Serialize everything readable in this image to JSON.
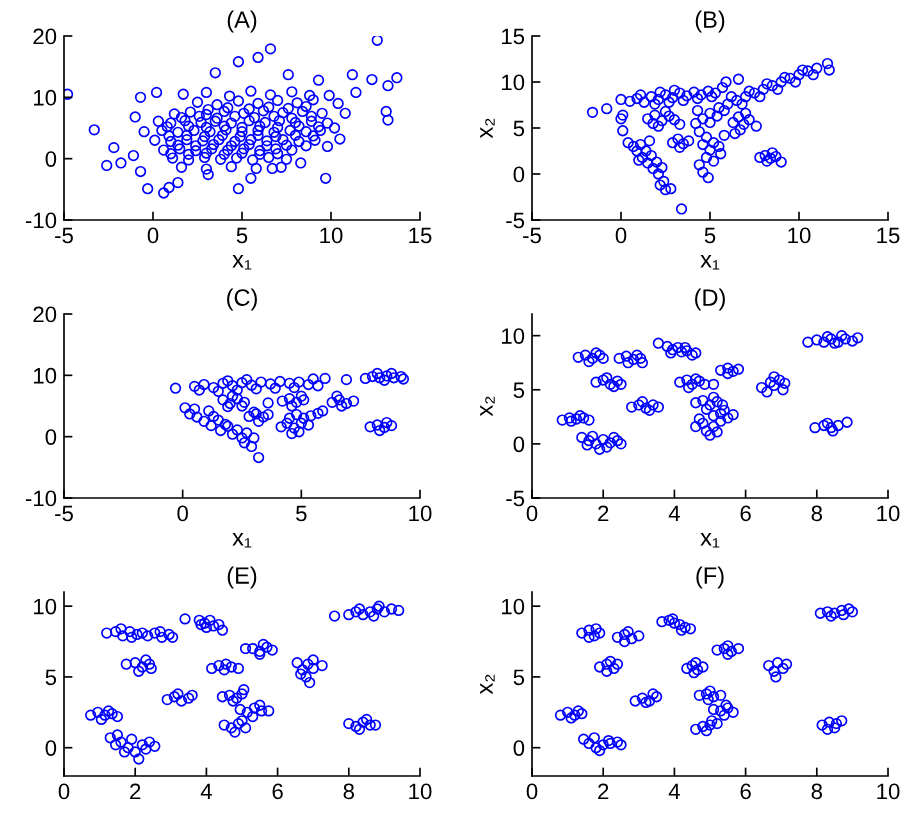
{
  "chart_data": [
    {
      "type": "scatter",
      "title": "(A)",
      "xlabel": "x₁",
      "color": "#0000ff",
      "marker": "circle",
      "xlim": [
        -5,
        15
      ],
      "ylim": [
        -10,
        20
      ],
      "xticks": [
        -5,
        0,
        5,
        10,
        15
      ],
      "yticks": [
        -10,
        0,
        10,
        20
      ],
      "x": [
        3.0,
        4.3,
        5.5,
        6.6,
        7.8,
        8.8,
        2.5,
        3.6,
        4.8,
        5.9,
        7.0,
        8.1,
        9.0,
        3.1,
        4.2,
        5.4,
        6.5,
        7.6,
        8.6,
        1.2,
        2.1,
        3.0,
        4.0,
        5.1,
        6.2,
        7.3,
        8.4,
        9.5,
        1.6,
        2.6,
        3.6,
        4.6,
        5.7,
        6.8,
        7.8,
        8.9,
        0.3,
        1.0,
        1.8,
        2.7,
        3.5,
        4.4,
        5.4,
        6.3,
        7.1,
        8.0,
        8.9,
        9.8,
        0.8,
        2.0,
        3.0,
        4.0,
        5.0,
        6.0,
        7.0,
        8.2,
        9.3,
        -0.5,
        0.5,
        1.4,
        2.3,
        3.2,
        4.1,
        5.0,
        5.9,
        6.8,
        7.7,
        8.6,
        9.4,
        0.9,
        1.9,
        2.9,
        3.9,
        4.9,
        5.9,
        6.9,
        8.0,
        9.0,
        0.1,
        1.0,
        1.9,
        2.8,
        3.7,
        4.6,
        5.5,
        6.4,
        7.3,
        8.2,
        9.1,
        1.4,
        2.4,
        3.4,
        4.4,
        5.4,
        6.4,
        7.5,
        8.6,
        0.6,
        1.5,
        2.4,
        3.3,
        4.2,
        5.1,
        6.0,
        6.9,
        7.8,
        1.0,
        2.0,
        3.0,
        4.0,
        5.0,
        6.0,
        7.0,
        1.1,
        2.0,
        2.9,
        3.8,
        4.7,
        5.6,
        6.5,
        7.5,
        1.6,
        3.0,
        4.4,
        5.8,
        7.2,
        9.9,
        10.4,
        10.2,
        9.8,
        -4.8,
        -3.3,
        -2.6,
        -2.2,
        -1.8,
        -1.1,
        -0.7,
        -0.3,
        0.6,
        0.9,
        4.8,
        6.6,
        4.8,
        5.9,
        3.5,
        9.7,
        12.6,
        11.2,
        11.4,
        12.3,
        13.7,
        13.2,
        13.1,
        13.2,
        9.3,
        10.5,
        10.8,
        7.6,
        0.2,
        -0.7,
        -1.0,
        1.7,
        1.4,
        3.1,
        5.5,
        6.7,
        8.3
      ],
      "values": [
        10.8,
        10.2,
        11.0,
        10.4,
        10.9,
        10.3,
        9.2,
        8.8,
        9.4,
        9.0,
        9.5,
        9.1,
        9.6,
        8.0,
        8.3,
        8.1,
        8.4,
        8.2,
        8.5,
        7.3,
        7.6,
        7.2,
        7.7,
        7.4,
        7.8,
        7.5,
        7.7,
        7.4,
        6.7,
        6.9,
        6.6,
        6.9,
        6.7,
        6.9,
        6.6,
        6.9,
        6.1,
        5.8,
        6.2,
        5.9,
        6.1,
        5.8,
        6.2,
        5.9,
        6.2,
        5.9,
        6.1,
        5.8,
        5.2,
        5.3,
        5.1,
        5.3,
        5.1,
        5.3,
        5.1,
        5.3,
        5.2,
        4.4,
        4.6,
        4.3,
        4.6,
        4.4,
        4.7,
        4.4,
        4.6,
        4.3,
        4.6,
        4.4,
        4.6,
        3.7,
        3.8,
        3.6,
        3.8,
        3.6,
        3.8,
        3.6,
        3.8,
        3.7,
        3.0,
        2.8,
        3.1,
        2.9,
        3.1,
        2.8,
        3.1,
        2.9,
        3.1,
        2.8,
        3.0,
        2.2,
        2.1,
        2.3,
        2.1,
        2.3,
        2.1,
        2.2,
        2.1,
        1.4,
        1.6,
        1.3,
        1.6,
        1.4,
        1.6,
        1.3,
        1.6,
        1.4,
        0.8,
        0.7,
        0.9,
        0.7,
        0.9,
        0.7,
        0.8,
        0.1,
        -0.2,
        0.2,
        -0.1,
        0.1,
        -0.2,
        0.2,
        -0.1,
        -1.4,
        -1.7,
        -1.3,
        -1.6,
        -1.4,
        10.3,
        9.0,
        5.0,
        2.0,
        10.5,
        4.7,
        -1.1,
        1.8,
        -0.7,
        0.5,
        -2.1,
        -4.9,
        -5.6,
        -4.7,
        -4.9,
        17.9,
        15.8,
        16.5,
        14.0,
        -3.2,
        19.3,
        13.7,
        10.8,
        12.9,
        13.2,
        11.9,
        7.7,
        6.3,
        12.8,
        3.2,
        7.4,
        13.7,
        10.8,
        10.0,
        6.8,
        10.5,
        -3.9,
        -2.6,
        -3.2,
        -1.6,
        -0.7
      ]
    },
    {
      "type": "scatter",
      "title": "(B)",
      "xlabel": "x₁",
      "ylabel": "x₂",
      "color": "#0000ff",
      "marker": "circle",
      "xlim": [
        -5,
        15
      ],
      "ylim": [
        -5,
        15
      ],
      "xticks": [
        -5,
        0,
        5,
        10,
        15
      ],
      "yticks": [
        -5,
        0,
        5,
        10,
        15
      ],
      "x": [
        -1.6,
        -0.8,
        0.0,
        0.0,
        0.1,
        0.1,
        0.5,
        0.9,
        1.3,
        1.7,
        2.1,
        2.5,
        2.9,
        3.3,
        3.7,
        4.1,
        4.5,
        4.9,
        5.3,
        5.7,
        1.1,
        1.9,
        2.7,
        3.5,
        4.3,
        5.1,
        3.0,
        2.2,
        5.0,
        5.5,
        6.0,
        6.5,
        7.0,
        7.5,
        8.0,
        8.5,
        9.0,
        9.5,
        10.0,
        10.5,
        11.0,
        11.6,
        11.7,
        6.2,
        7.2,
        8.2,
        9.2,
        10.2,
        5.8,
        6.8,
        7.8,
        8.8,
        9.8,
        10.8,
        5.9,
        6.6,
        0.4,
        0.7,
        0.9,
        1.1,
        1.2,
        1.4,
        1.5,
        1.7,
        1.8,
        2.0,
        2.1,
        2.3,
        2.4,
        2.5,
        2.8,
        1.6,
        1.0,
        2.2,
        1.5,
        1.9,
        2.3,
        2.7,
        3.0,
        2.1,
        2.5,
        1.8,
        2.9,
        3.2,
        3.5,
        3.8,
        3.3,
        3.3,
        3.4,
        4.2,
        4.6,
        5.0,
        5.4,
        4.4,
        4.8,
        5.2,
        4.6,
        5.0,
        5.5,
        4.8,
        5.2,
        4.4,
        4.6,
        4.9,
        5.8,
        4.3,
        5.6,
        6.3,
        6.6,
        6.9,
        7.2,
        6.7,
        7.0,
        7.6,
        6.4,
        7.8,
        8.1,
        8.4,
        8.7,
        9.0,
        8.2,
        8.5
      ],
      "values": [
        6.7,
        7.1,
        8.1,
        6.0,
        4.7,
        6.4,
        7.9,
        8.2,
        7.8,
        8.4,
        8.1,
        8.6,
        8.3,
        8.8,
        8.5,
        8.9,
        8.6,
        9.0,
        8.8,
        9.4,
        8.6,
        7.6,
        7.8,
        8.0,
        8.2,
        8.4,
        9.1,
        8.9,
        6.6,
        7.2,
        7.6,
        8.0,
        8.4,
        8.8,
        9.2,
        9.6,
        10.0,
        10.4,
        10.8,
        11.2,
        11.5,
        12.0,
        11.3,
        8.4,
        9.0,
        9.8,
        10.5,
        11.3,
        6.9,
        7.6,
        8.4,
        9.2,
        10.0,
        10.8,
        10.0,
        10.3,
        3.4,
        3.0,
        2.5,
        3.2,
        1.8,
        2.5,
        1.2,
        2.0,
        0.6,
        1.3,
        0.0,
        0.7,
        -0.8,
        -1.7,
        -1.6,
        3.6,
        1.5,
        -1.2,
        6.0,
        6.4,
        5.8,
        6.3,
        5.9,
        5.2,
        6.8,
        5.5,
        3.4,
        3.8,
        3.3,
        3.6,
        2.9,
        5.4,
        -3.8,
        5.5,
        6.0,
        5.6,
        6.3,
        4.6,
        4.0,
        3.4,
        3.2,
        2.6,
        3.0,
        1.8,
        1.4,
        1.0,
        0.2,
        -0.4,
        4.2,
        6.9,
        2.2,
        5.6,
        6.2,
        5.4,
        5.9,
        4.8,
        6.6,
        5.2,
        4.4,
        1.8,
        2.0,
        1.7,
        1.9,
        1.3,
        1.4,
        2.3
      ]
    },
    {
      "type": "scatter",
      "title": "(C)",
      "xlabel": "x₁",
      "color": "#0000ff",
      "marker": "circle",
      "xlim": [
        -5,
        10
      ],
      "ylim": [
        -10,
        20
      ],
      "xticks": [
        -5,
        0,
        5,
        10
      ],
      "yticks": [
        -10,
        0,
        10,
        20
      ],
      "x": [
        -0.3,
        0.5,
        0.9,
        1.3,
        1.7,
        2.1,
        2.5,
        2.9,
        3.3,
        3.7,
        4.1,
        4.5,
        4.9,
        5.3,
        5.7,
        0.7,
        1.5,
        2.3,
        3.1,
        3.9,
        4.7,
        6.0,
        6.9,
        5.5,
        2.7,
        1.9,
        7.7,
        8.0,
        8.3,
        8.6,
        8.9,
        9.2,
        8.2,
        8.8,
        8.5,
        9.3,
        1.7,
        2.0,
        2.3,
        2.6,
        2.1,
        2.5,
        1.9,
        2.8,
        3.1,
        3.4,
        3.6,
        3.2,
        3.0,
        3.6,
        4.2,
        4.5,
        4.8,
        5.1,
        4.6,
        5.0,
        4.5,
        4.8,
        5.1,
        5.4,
        5.7,
        5.0,
        4.7,
        5.3,
        4.6,
        4.9,
        5.9,
        4.4,
        4.15,
        6.3,
        6.6,
        6.9,
        7.2,
        6.7,
        6.5,
        7.9,
        8.2,
        8.5,
        8.8,
        8.3,
        8.6,
        0.1,
        0.3,
        0.6,
        1.1,
        0.9,
        1.2,
        1.5,
        1.6,
        1.9,
        2.1,
        2.3,
        2.5,
        2.7,
        2.9,
        3.0,
        3.2,
        1.3,
        1.8,
        2.6,
        0.5
      ],
      "values": [
        7.9,
        8.2,
        8.5,
        8.0,
        8.7,
        8.3,
        8.8,
        8.4,
        8.9,
        8.6,
        9.0,
        8.7,
        8.9,
        8.5,
        8.3,
        7.6,
        7.4,
        7.6,
        7.8,
        7.9,
        8.0,
        9.5,
        9.3,
        9.4,
        9.3,
        9.1,
        9.5,
        9.8,
        9.6,
        9.9,
        9.6,
        9.8,
        10.3,
        10.3,
        9.2,
        9.4,
        6.0,
        5.4,
        6.2,
        5.6,
        6.6,
        5.0,
        4.9,
        3.3,
        3.7,
        3.2,
        3.6,
        2.5,
        4.0,
        5.5,
        5.8,
        6.2,
        5.6,
        6.0,
        5.0,
        6.6,
        3.0,
        3.6,
        3.0,
        3.4,
        3.8,
        2.2,
        1.4,
        1.9,
        0.5,
        0.8,
        4.2,
        2.2,
        1.6,
        5.6,
        6.0,
        5.4,
        5.8,
        5.0,
        6.6,
        1.6,
        1.9,
        1.5,
        1.8,
        1.0,
        2.3,
        4.7,
        3.7,
        3.2,
        4.2,
        2.5,
        1.8,
        2.7,
        1.0,
        1.7,
        0.4,
        1.1,
        -0.2,
        0.6,
        -1.6,
        -0.2,
        -3.4,
        3.3,
        2.0,
        -1.0,
        4.5
      ]
    },
    {
      "type": "scatter",
      "title": "(D)",
      "xlabel": "x₁",
      "ylabel": "x₂",
      "color": "#0000ff",
      "marker": "circle",
      "xlim": [
        0,
        10
      ],
      "ylim": [
        -5,
        12
      ],
      "xticks": [
        0,
        2,
        4,
        6,
        8,
        10
      ],
      "yticks": [
        -5,
        0,
        5,
        10
      ],
      "x": [
        0.85,
        1.05,
        1.25,
        1.45,
        1.6,
        1.1,
        1.35,
        1.4,
        1.6,
        1.8,
        1.9,
        2.0,
        2.2,
        2.4,
        2.5,
        1.7,
        2.1,
        1.55,
        2.3,
        1.3,
        1.5,
        1.7,
        1.9,
        2.0,
        1.6,
        1.8,
        2.45,
        2.65,
        2.85,
        3.05,
        2.7,
        2.95,
        3.1,
        1.8,
        2.0,
        2.2,
        2.4,
        2.5,
        2.1,
        2.3,
        2.8,
        3.0,
        3.2,
        3.4,
        3.55,
        3.1,
        3.3,
        3.55,
        3.8,
        3.95,
        4.1,
        4.2,
        4.35,
        4.5,
        4.6,
        3.9,
        4.3,
        4.15,
        4.35,
        4.5,
        4.7,
        4.85,
        4.4,
        4.6,
        5.1,
        4.6,
        4.8,
        5.0,
        5.2,
        5.35,
        4.9,
        5.1,
        5.1,
        5.3,
        5.5,
        5.65,
        5.4,
        5.3,
        4.6,
        4.8,
        4.9,
        5.1,
        5.2,
        4.7,
        5.0,
        5.3,
        5.5,
        5.65,
        5.8,
        5.5,
        6.45,
        6.6,
        6.8,
        6.95,
        7.1,
        6.8,
        7.05,
        6.7,
        7.75,
        8.0,
        8.2,
        8.4,
        8.6,
        8.8,
        9.0,
        9.15,
        8.3,
        8.7,
        8.5,
        7.95,
        8.2,
        8.4,
        8.6,
        8.3,
        8.45,
        8.85
      ],
      "values": [
        2.2,
        2.4,
        2.3,
        2.4,
        2.2,
        2.1,
        2.6,
        0.6,
        0.3,
        0.0,
        -0.5,
        0.4,
        0.1,
        0.3,
        0.0,
        0.7,
        -0.3,
        -0.1,
        0.6,
        8.0,
        8.2,
        7.9,
        8.2,
        7.9,
        7.6,
        8.4,
        7.9,
        8.1,
        7.8,
        7.9,
        7.5,
        8.2,
        7.5,
        5.7,
        5.9,
        5.5,
        5.8,
        5.5,
        6.1,
        5.3,
        3.4,
        3.6,
        3.3,
        3.6,
        3.4,
        3.9,
        3.1,
        9.3,
        9.0,
        8.7,
        8.9,
        8.5,
        8.6,
        8.2,
        8.4,
        8.4,
        8.9,
        5.7,
        5.9,
        5.5,
        5.8,
        5.5,
        5.2,
        6.0,
        5.5,
        3.8,
        4.0,
        3.6,
        3.9,
        3.6,
        3.2,
        4.3,
        2.6,
        2.8,
        2.4,
        2.7,
        3.1,
        2.1,
        1.6,
        1.9,
        1.2,
        1.6,
        1.1,
        2.3,
        0.8,
        6.8,
        7.0,
        6.7,
        6.9,
        6.5,
        5.2,
        4.8,
        5.4,
        5.9,
        5.6,
        6.2,
        5.0,
        5.7,
        9.4,
        9.6,
        9.4,
        9.7,
        9.4,
        9.7,
        9.5,
        9.8,
        9.9,
        10.0,
        9.3,
        1.5,
        1.7,
        1.5,
        1.7,
        1.9,
        1.2,
        2.0
      ]
    },
    {
      "type": "scatter",
      "title": "(E)",
      "color": "#0000ff",
      "marker": "circle",
      "xlim": [
        0,
        10
      ],
      "ylim": [
        -2,
        11
      ],
      "xticks": [
        0,
        2,
        4,
        6,
        8,
        10
      ],
      "yticks": [
        0,
        5,
        10
      ],
      "x": [
        0.75,
        0.95,
        1.15,
        1.35,
        1.5,
        1.05,
        1.25,
        1.3,
        1.5,
        1.6,
        1.8,
        1.9,
        2.0,
        2.2,
        2.4,
        2.55,
        1.7,
        2.1,
        2.3,
        1.45,
        1.2,
        1.45,
        1.65,
        1.85,
        2.05,
        1.6,
        1.9,
        2.2,
        2.35,
        2.55,
        2.75,
        2.95,
        3.05,
        2.7,
        1.75,
        2.0,
        2.2,
        2.4,
        2.1,
        2.3,
        2.45,
        2.9,
        3.1,
        3.3,
        3.5,
        3.6,
        3.2,
        3.4,
        3.8,
        3.95,
        4.1,
        4.2,
        4.35,
        4.45,
        4.0,
        3.85,
        4.15,
        4.35,
        4.5,
        4.7,
        4.9,
        4.55,
        4.45,
        4.65,
        4.85,
        5.0,
        5.05,
        4.75,
        4.95,
        5.15,
        5.35,
        5.55,
        5.75,
        5.3,
        5.5,
        4.5,
        4.7,
        4.9,
        5.1,
        4.8,
        5.0,
        5.1,
        5.3,
        5.5,
        5.7,
        5.85,
        5.5,
        5.6,
        6.55,
        6.7,
        6.85,
        7.0,
        6.8,
        7.0,
        6.9,
        7.25,
        6.65,
        7.6,
        8.0,
        8.2,
        8.4,
        8.6,
        8.8,
        9.0,
        9.2,
        9.4,
        8.3,
        8.7,
        8.85,
        8.0,
        8.2,
        8.4,
        8.6,
        8.75,
        8.3,
        8.5
      ],
      "values": [
        2.3,
        2.5,
        2.3,
        2.4,
        2.2,
        2.0,
        2.6,
        0.7,
        0.9,
        0.4,
        0.0,
        0.6,
        -0.3,
        0.2,
        0.4,
        0.1,
        -0.3,
        -0.8,
        -0.1,
        0.2,
        8.1,
        8.2,
        7.9,
        8.2,
        8.0,
        8.4,
        7.8,
        8.1,
        7.9,
        8.1,
        7.8,
        8.0,
        7.8,
        8.2,
        5.9,
        6.0,
        5.7,
        5.9,
        5.4,
        6.2,
        5.6,
        3.4,
        3.6,
        3.3,
        3.5,
        3.7,
        3.8,
        9.1,
        9.0,
        8.8,
        9.0,
        8.6,
        8.7,
        8.3,
        8.5,
        8.7,
        5.6,
        5.8,
        5.5,
        5.7,
        5.6,
        5.9,
        3.6,
        3.7,
        3.5,
        3.8,
        4.1,
        3.3,
        2.7,
        2.5,
        2.8,
        2.6,
        2.6,
        2.2,
        3.0,
        1.6,
        1.4,
        1.7,
        1.4,
        1.1,
        1.9,
        7.0,
        7.0,
        6.8,
        7.1,
        6.9,
        6.6,
        7.3,
        6.0,
        5.5,
        5.9,
        6.2,
        5.0,
        5.6,
        4.6,
        5.8,
        5.2,
        9.3,
        9.4,
        9.6,
        9.4,
        9.6,
        9.8,
        9.6,
        9.8,
        9.7,
        9.8,
        9.3,
        10.0,
        1.7,
        1.5,
        1.8,
        1.6,
        1.6,
        1.3,
        2.0
      ]
    },
    {
      "type": "scatter",
      "title": "(F)",
      "ylabel": "x₂",
      "color": "#0000ff",
      "marker": "circle",
      "xlim": [
        0,
        10
      ],
      "ylim": [
        -2,
        11
      ],
      "xticks": [
        0,
        2,
        4,
        6,
        8,
        10
      ],
      "yticks": [
        0,
        5,
        10
      ],
      "x": [
        0.8,
        1.0,
        1.2,
        1.4,
        1.1,
        1.3,
        1.45,
        1.6,
        1.8,
        1.75,
        2.0,
        2.2,
        2.4,
        2.5,
        1.9,
        2.15,
        1.4,
        1.6,
        1.75,
        1.9,
        1.6,
        1.8,
        2.4,
        2.6,
        2.8,
        3.0,
        2.7,
        2.6,
        1.9,
        2.1,
        2.3,
        2.4,
        2.1,
        2.2,
        2.9,
        3.1,
        3.3,
        3.5,
        3.2,
        3.4,
        3.65,
        3.85,
        4.0,
        4.15,
        4.3,
        4.45,
        3.95,
        4.2,
        4.35,
        4.5,
        4.65,
        4.8,
        4.55,
        4.6,
        4.7,
        4.9,
        5.1,
        5.3,
        4.95,
        5.0,
        5.1,
        5.3,
        5.5,
        5.65,
        5.4,
        5.45,
        4.6,
        4.8,
        5.0,
        5.2,
        4.9,
        5.05,
        5.2,
        5.4,
        5.6,
        5.8,
        5.5,
        5.5,
        6.65,
        6.8,
        6.9,
        7.05,
        7.15,
        6.85,
        8.1,
        8.3,
        8.5,
        8.7,
        8.9,
        9.0,
        8.4,
        8.75,
        8.15,
        8.35,
        8.55,
        8.7,
        8.3,
        8.5
      ],
      "values": [
        2.3,
        2.5,
        2.3,
        2.4,
        2.1,
        2.6,
        0.6,
        0.3,
        0.0,
        0.7,
        0.2,
        0.3,
        0.4,
        0.2,
        -0.2,
        0.5,
        8.1,
        8.3,
        7.9,
        8.1,
        7.8,
        8.4,
        7.8,
        8.0,
        7.7,
        7.9,
        8.2,
        7.5,
        5.7,
        5.9,
        5.6,
        5.9,
        5.4,
        6.1,
        3.3,
        3.5,
        3.3,
        3.6,
        3.2,
        3.8,
        8.9,
        9.0,
        8.8,
        8.7,
        8.5,
        8.4,
        9.1,
        8.3,
        5.6,
        5.8,
        5.5,
        5.7,
        5.3,
        6.0,
        3.7,
        3.8,
        3.6,
        3.7,
        3.4,
        4.0,
        2.7,
        2.6,
        2.8,
        2.5,
        2.3,
        3.0,
        1.3,
        1.5,
        1.6,
        1.7,
        1.2,
        1.9,
        6.9,
        7.0,
        6.8,
        7.0,
        6.6,
        7.2,
        5.8,
        5.4,
        6.0,
        5.6,
        5.9,
        5.0,
        9.5,
        9.6,
        9.5,
        9.7,
        9.8,
        9.6,
        9.3,
        9.4,
        1.6,
        1.8,
        1.7,
        1.9,
        1.3,
        1.4
      ]
    }
  ]
}
